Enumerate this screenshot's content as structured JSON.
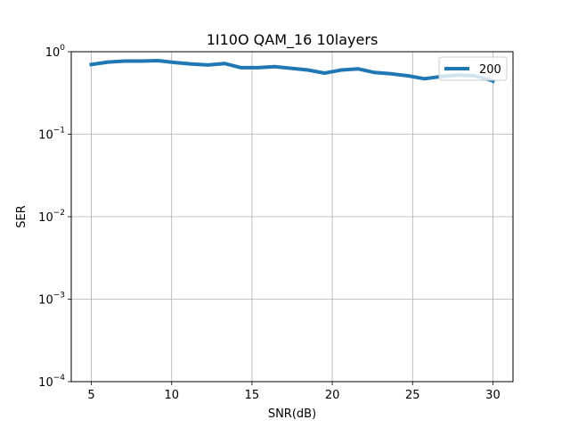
{
  "chart_data": {
    "type": "line",
    "title": "1I10O QAM_16 10layers",
    "xlabel": "SNR(dB)",
    "ylabel": "SER",
    "xlim": [
      3.75,
      31.25
    ],
    "ylim": [
      0.0001,
      1
    ],
    "yscale": "log",
    "grid": true,
    "legend_position": "top-right",
    "x_ticks": [
      5,
      10,
      15,
      20,
      25,
      30
    ],
    "x_tick_labels": [
      "5",
      "10",
      "15",
      "20",
      "25",
      "30"
    ],
    "y_ticks": [
      0.0001,
      0.001,
      0.01,
      0.1,
      1
    ],
    "y_tick_base": [
      "10",
      "10",
      "10",
      "10",
      "10"
    ],
    "y_tick_exp": [
      "−4",
      "−3",
      "−2",
      "−1",
      "0"
    ],
    "series": [
      {
        "name": "200",
        "color": "#1f77b4",
        "x": [
          5,
          6.04,
          7.07,
          8.11,
          9.15,
          10.19,
          11.22,
          12.26,
          13.3,
          14.33,
          15.37,
          16.41,
          17.45,
          18.48,
          19.52,
          20.56,
          21.6,
          22.63,
          23.67,
          24.71,
          25.74,
          26.78,
          27.82,
          28.86,
          29.89,
          30
        ],
        "y": [
          0.7,
          0.75,
          0.77,
          0.77,
          0.78,
          0.74,
          0.71,
          0.69,
          0.72,
          0.64,
          0.64,
          0.66,
          0.63,
          0.6,
          0.55,
          0.6,
          0.62,
          0.56,
          0.54,
          0.51,
          0.47,
          0.5,
          0.52,
          0.51,
          0.45,
          0.44
        ]
      }
    ]
  }
}
